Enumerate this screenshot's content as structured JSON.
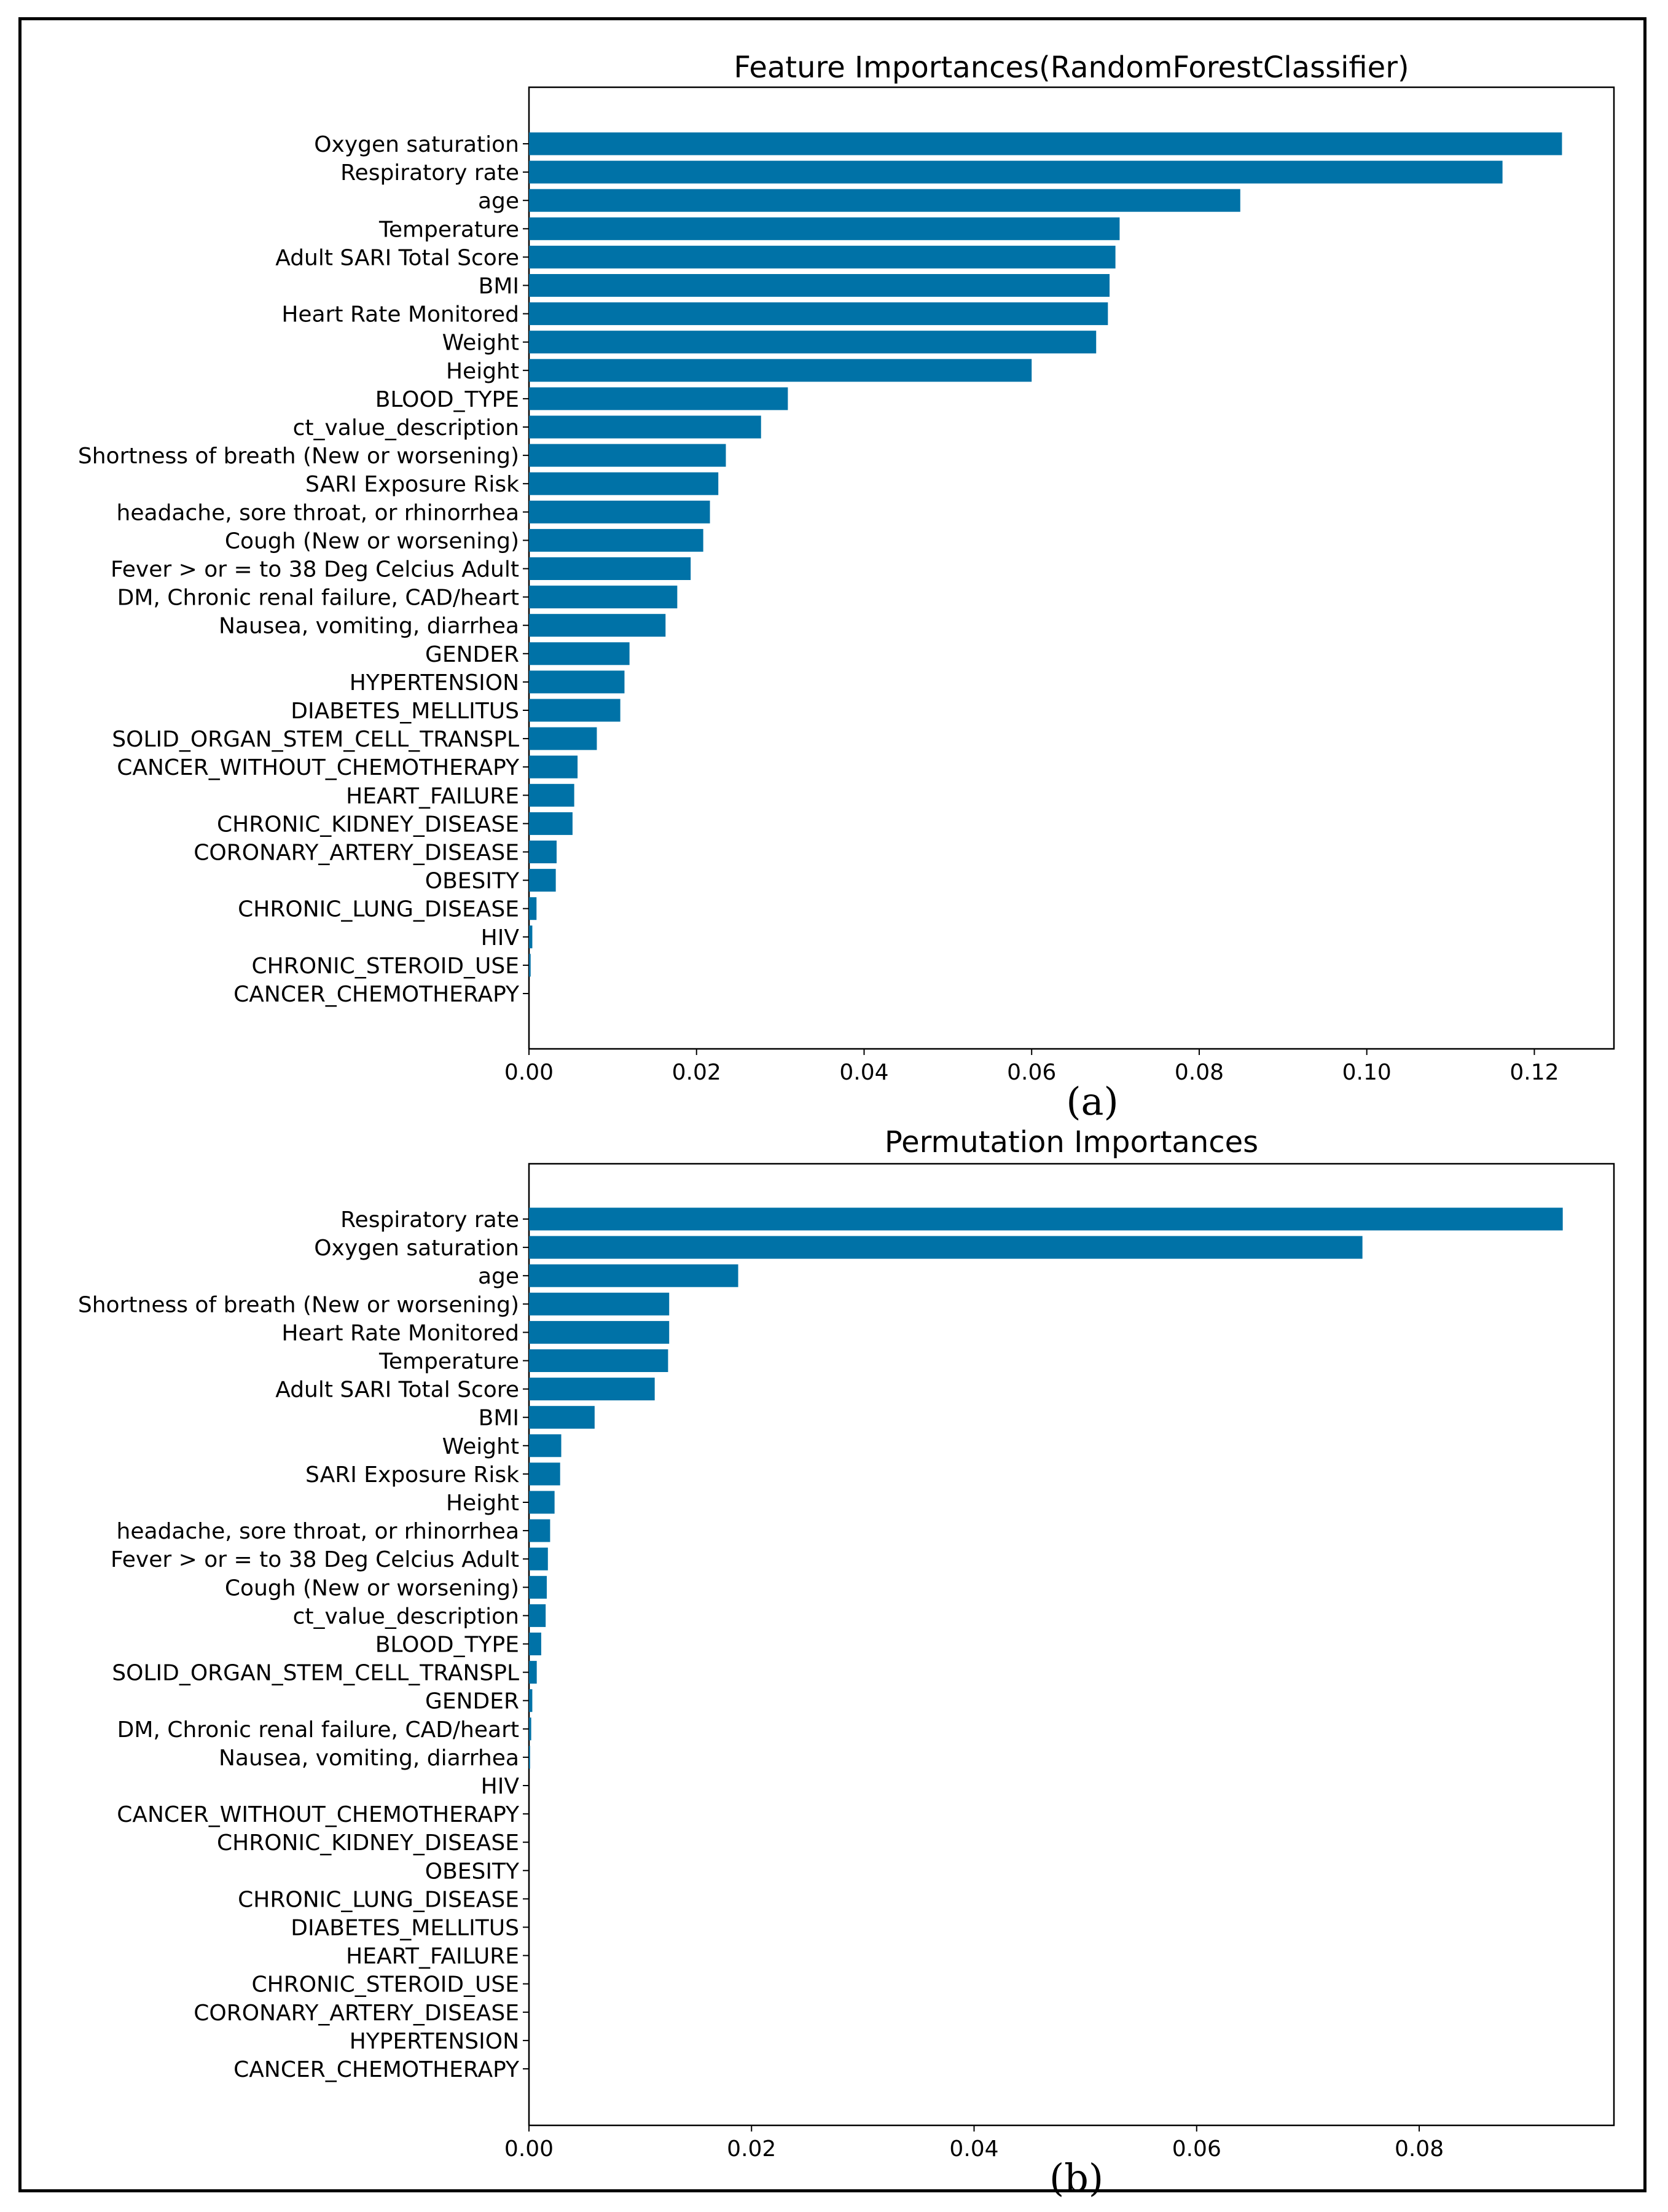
{
  "colors": {
    "bar": "#0072a7",
    "axis": "#000000",
    "frame": "#000000"
  },
  "chart_data": [
    {
      "type": "bar",
      "orientation": "horizontal",
      "title": "Feature Importances(RandomForestClassifier)",
      "caption": "(a)",
      "xlabel": "",
      "ylabel": "",
      "xlim": [
        0,
        0.1295
      ],
      "xticks": [
        0.0,
        0.02,
        0.04,
        0.06,
        0.08,
        0.1,
        0.12
      ],
      "xtick_labels": [
        "0.00",
        "0.02",
        "0.04",
        "0.06",
        "0.08",
        "0.10",
        "0.12"
      ],
      "grid": false,
      "categories": [
        "Oxygen saturation",
        "Respiratory rate",
        "age",
        "Temperature",
        "Adult SARI Total Score",
        "BMI",
        "Heart Rate Monitored",
        "Weight",
        "Height",
        "BLOOD_TYPE",
        "ct_value_description",
        "Shortness of breath (New or worsening)",
        "SARI Exposure Risk",
        "headache, sore throat, or rhinorrhea",
        "Cough (New or worsening)",
        "Fever > or = to 38 Deg Celcius Adult",
        "DM, Chronic renal failure, CAD/heart",
        "Nausea, vomiting, diarrhea",
        "GENDER",
        "HYPERTENSION",
        "DIABETES_MELLITUS",
        "SOLID_ORGAN_STEM_CELL_TRANSPL",
        "CANCER_WITHOUT_CHEMOTHERAPY",
        "HEART_FAILURE",
        "CHRONIC_KIDNEY_DISEASE",
        "CORONARY_ARTERY_DISEASE",
        "OBESITY",
        "CHRONIC_LUNG_DISEASE",
        "HIV",
        "CHRONIC_STEROID_USE",
        "CANCER_CHEMOTHERAPY"
      ],
      "values": [
        0.1233,
        0.1162,
        0.0849,
        0.0705,
        0.07,
        0.0693,
        0.0691,
        0.0677,
        0.06,
        0.0309,
        0.0277,
        0.0235,
        0.0226,
        0.0216,
        0.0208,
        0.0193,
        0.0177,
        0.0163,
        0.012,
        0.0114,
        0.0109,
        0.0081,
        0.0058,
        0.0054,
        0.0052,
        0.0033,
        0.0032,
        0.0009,
        0.0004,
        0.0002,
        0.0
      ]
    },
    {
      "type": "bar",
      "orientation": "horizontal",
      "title": "Permutation Importances",
      "caption": "(b)",
      "xlabel": "",
      "ylabel": "",
      "xlim": [
        0,
        0.0975
      ],
      "xticks": [
        0.0,
        0.02,
        0.04,
        0.06,
        0.08
      ],
      "xtick_labels": [
        "0.00",
        "0.02",
        "0.04",
        "0.06",
        "0.08"
      ],
      "grid": false,
      "categories": [
        "Respiratory rate",
        "Oxygen saturation",
        "age",
        "Shortness of breath (New or worsening)",
        "Heart Rate Monitored",
        "Temperature",
        "Adult SARI Total Score",
        "BMI",
        "Weight",
        "SARI Exposure Risk",
        "Height",
        "headache, sore throat, or rhinorrhea",
        "Fever > or = to 38 Deg Celcius Adult",
        "Cough (New or worsening)",
        "ct_value_description",
        "BLOOD_TYPE",
        "SOLID_ORGAN_STEM_CELL_TRANSPL",
        "GENDER",
        "DM, Chronic renal failure, CAD/heart",
        "Nausea, vomiting, diarrhea",
        "HIV",
        "CANCER_WITHOUT_CHEMOTHERAPY",
        "CHRONIC_KIDNEY_DISEASE",
        "OBESITY",
        "CHRONIC_LUNG_DISEASE",
        "DIABETES_MELLITUS",
        "HEART_FAILURE",
        "CHRONIC_STEROID_USE",
        "CORONARY_ARTERY_DISEASE",
        "HYPERTENSION",
        "CANCER_CHEMOTHERAPY"
      ],
      "values": [
        0.0929,
        0.0749,
        0.0188,
        0.0126,
        0.0126,
        0.0125,
        0.0113,
        0.0059,
        0.0029,
        0.0028,
        0.0023,
        0.0019,
        0.0017,
        0.0016,
        0.0015,
        0.0011,
        0.0007,
        0.0003,
        0.0002,
        0.0001,
        0.0,
        0.0,
        0.0,
        0.0,
        0.0,
        0.0,
        0.0,
        0.0,
        0.0,
        0.0,
        0.0
      ]
    }
  ]
}
